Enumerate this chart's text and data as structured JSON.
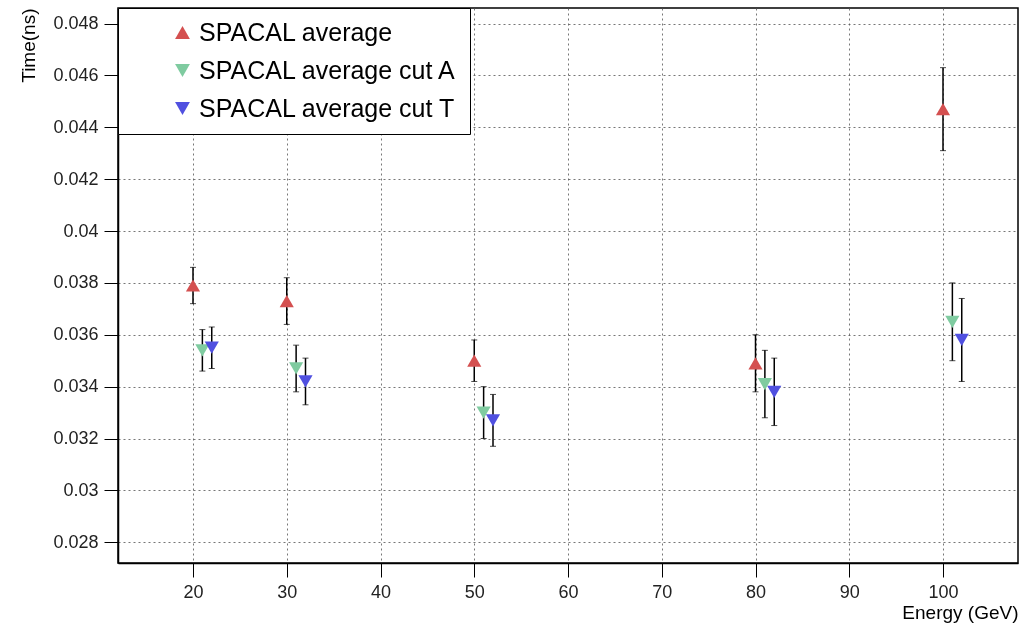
{
  "chart_data": {
    "type": "scatter",
    "xlabel": "Energy (GeV)",
    "ylabel": "Time(ns)",
    "xlim": [
      12,
      108
    ],
    "xticks": [
      20,
      30,
      40,
      50,
      60,
      70,
      80,
      90,
      100
    ],
    "ylim": [
      0.0272,
      0.0486
    ],
    "yticks": [
      0.028,
      0.03,
      0.032,
      0.034,
      0.036,
      0.038,
      0.04,
      0.042,
      0.044,
      0.046,
      0.048
    ],
    "grid": true,
    "legend": "top left",
    "series": [
      {
        "name": "SPACAL average",
        "color": "#d45050",
        "marker": "triangle-up",
        "x": [
          20,
          30,
          50,
          80,
          100
        ],
        "values": [
          0.0379,
          0.0373,
          0.035,
          0.0349,
          0.0447
        ],
        "errors": [
          0.0007,
          0.0009,
          0.0008,
          0.0011,
          0.0016
        ]
      },
      {
        "name": "SPACAL average cut A",
        "color": "#7fcba0",
        "marker": "triangle-down",
        "x": [
          21,
          31,
          51,
          81,
          101
        ],
        "values": [
          0.0354,
          0.0347,
          0.033,
          0.0341,
          0.0365
        ],
        "errors": [
          0.0008,
          0.0009,
          0.001,
          0.0013,
          0.0015
        ]
      },
      {
        "name": "SPACAL average cut T",
        "color": "#5050e0",
        "marker": "triangle-down",
        "x": [
          22,
          32,
          52,
          82,
          102
        ],
        "values": [
          0.0355,
          0.0342,
          0.0327,
          0.0338,
          0.0358
        ],
        "errors": [
          0.0008,
          0.0009,
          0.001,
          0.0013,
          0.0016
        ]
      }
    ]
  }
}
